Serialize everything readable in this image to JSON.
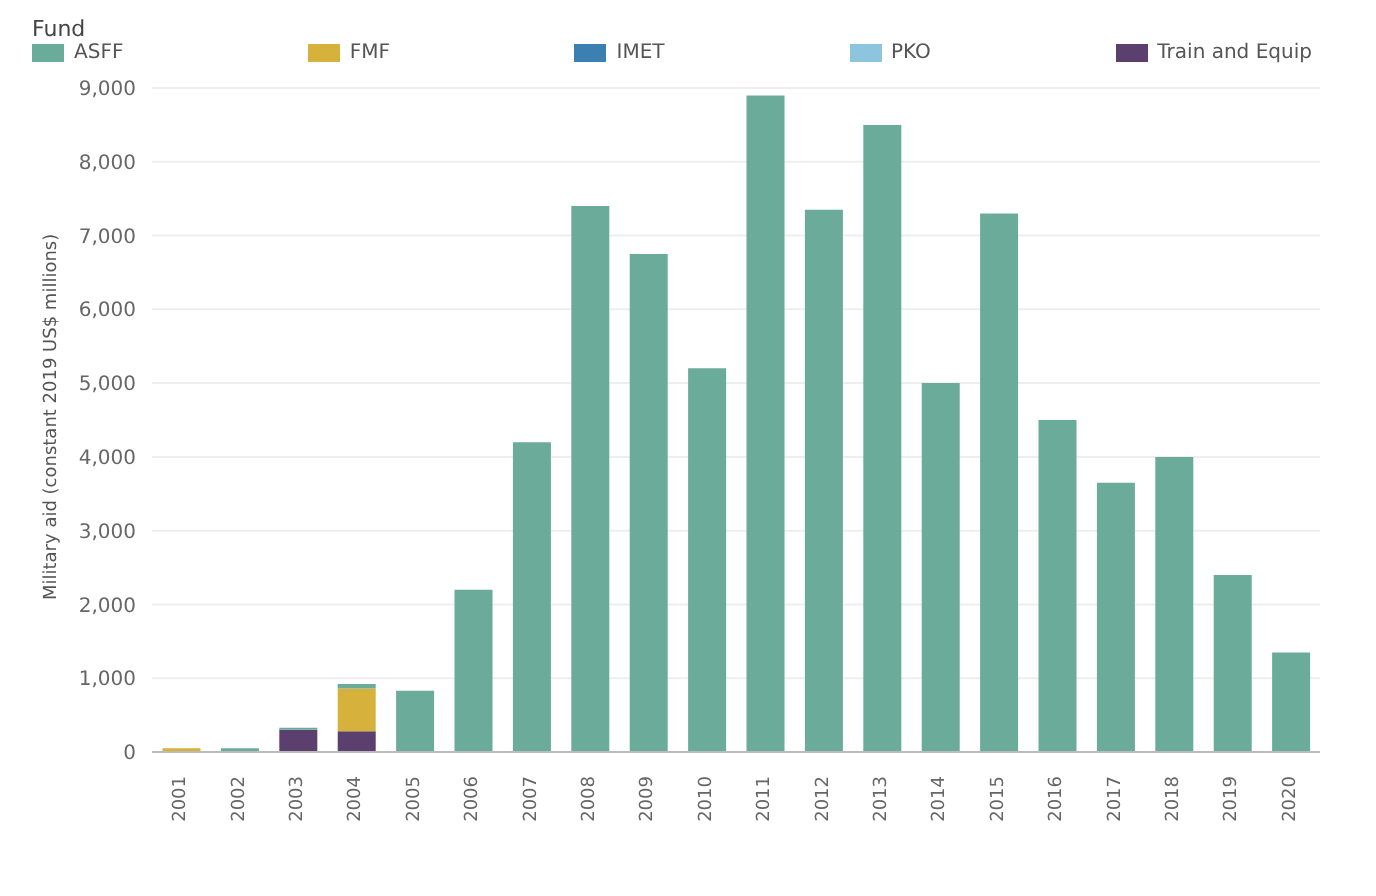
{
  "chart_data": {
    "type": "bar",
    "stacked": true,
    "legend_title": "Fund",
    "ylabel": "Military aid (constant 2019 US$ millions)",
    "categories": [
      "2001",
      "2002",
      "2003",
      "2004",
      "2005",
      "2006",
      "2007",
      "2008",
      "2009",
      "2010",
      "2011",
      "2012",
      "2013",
      "2014",
      "2015",
      "2016",
      "2017",
      "2018",
      "2019",
      "2020"
    ],
    "series": [
      {
        "name": "Train and Equip",
        "color": "#5b3f6e",
        "values": [
          0,
          0,
          300,
          280,
          0,
          0,
          0,
          0,
          0,
          0,
          0,
          0,
          0,
          0,
          0,
          0,
          0,
          0,
          0,
          0
        ]
      },
      {
        "name": "PKO",
        "color": "#8ec5de",
        "values": [
          0,
          0,
          0,
          0,
          0,
          0,
          0,
          0,
          0,
          0,
          0,
          0,
          0,
          0,
          0,
          0,
          0,
          0,
          0,
          0
        ]
      },
      {
        "name": "IMET",
        "color": "#3b80b0",
        "values": [
          0,
          0,
          0,
          0,
          0,
          0,
          0,
          0,
          0,
          0,
          0,
          0,
          0,
          0,
          0,
          0,
          0,
          0,
          0,
          0
        ]
      },
      {
        "name": "FMF",
        "color": "#d6b23c",
        "values": [
          50,
          0,
          0,
          580,
          0,
          0,
          0,
          0,
          0,
          0,
          0,
          0,
          0,
          0,
          0,
          0,
          0,
          0,
          0,
          0
        ]
      },
      {
        "name": "ASFF",
        "color": "#6aab9a",
        "values": [
          0,
          50,
          30,
          60,
          830,
          2200,
          4200,
          7400,
          6750,
          5200,
          8900,
          7350,
          8500,
          5000,
          7300,
          4500,
          3650,
          4000,
          2400,
          1350
        ]
      }
    ],
    "ylim": [
      0,
      9000
    ],
    "yticks": [
      {
        "value": 0,
        "label": "0"
      },
      {
        "value": 1000,
        "label": "1,000"
      },
      {
        "value": 2000,
        "label": "2,000"
      },
      {
        "value": 3000,
        "label": "3,000"
      },
      {
        "value": 4000,
        "label": "4,000"
      },
      {
        "value": 5000,
        "label": "5,000"
      },
      {
        "value": 6000,
        "label": "6,000"
      },
      {
        "value": 7000,
        "label": "7,000"
      },
      {
        "value": 8000,
        "label": "8,000"
      },
      {
        "value": 9000,
        "label": "9,000"
      }
    ],
    "grid": "y",
    "legend": "top left"
  }
}
